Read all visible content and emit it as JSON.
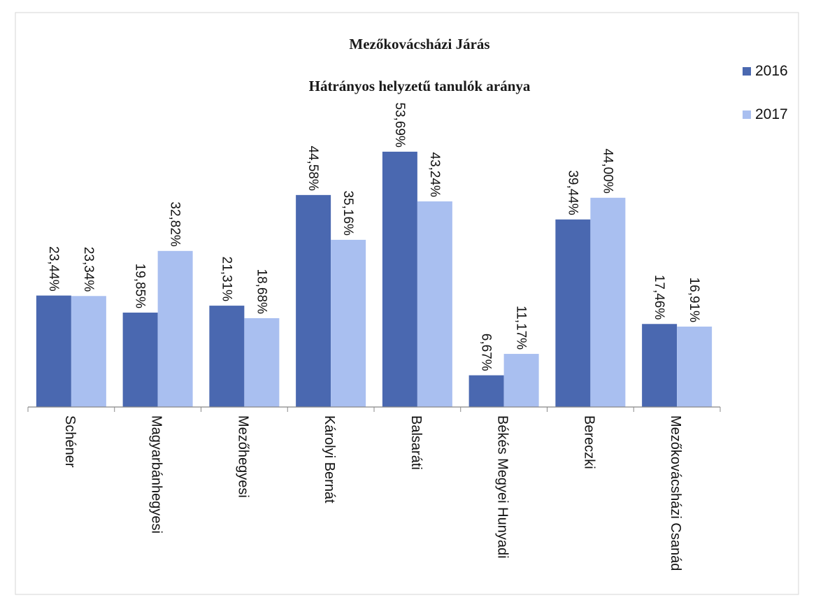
{
  "chart_data": {
    "type": "bar",
    "title": "Mezőkovácsházi Járás",
    "subtitle": "Hátrányos helyzetű tanulók aránya",
    "categories": [
      "Schéner",
      "Magyarbánhegyesi",
      "Mezőhegyesi",
      "Károlyi Bernát",
      "Balsaráti",
      "Békés Megyei Hunyadi",
      "Bereczki",
      "Mezőkovácsházi Csanád"
    ],
    "series": [
      {
        "name": "2016",
        "color": "#4a68b0",
        "values": [
          23.44,
          19.85,
          21.31,
          44.58,
          53.69,
          6.67,
          39.44,
          17.46
        ],
        "labels": [
          "23,44%",
          "19,85%",
          "21,31%",
          "44,58%",
          "53,69%",
          "6,67%",
          "39,44%",
          "17,46%"
        ]
      },
      {
        "name": "2017",
        "color": "#a9bff0",
        "values": [
          23.34,
          32.82,
          18.68,
          35.16,
          43.24,
          11.17,
          44.0,
          16.91
        ],
        "labels": [
          "23,34%",
          "32,82%",
          "18,68%",
          "35,16%",
          "43,24%",
          "11,17%",
          "44,00%",
          "16,91%"
        ]
      }
    ],
    "ylim": [
      0,
      60
    ],
    "grid": false,
    "legend_position": "top-right",
    "xlabel": "",
    "ylabel": ""
  }
}
